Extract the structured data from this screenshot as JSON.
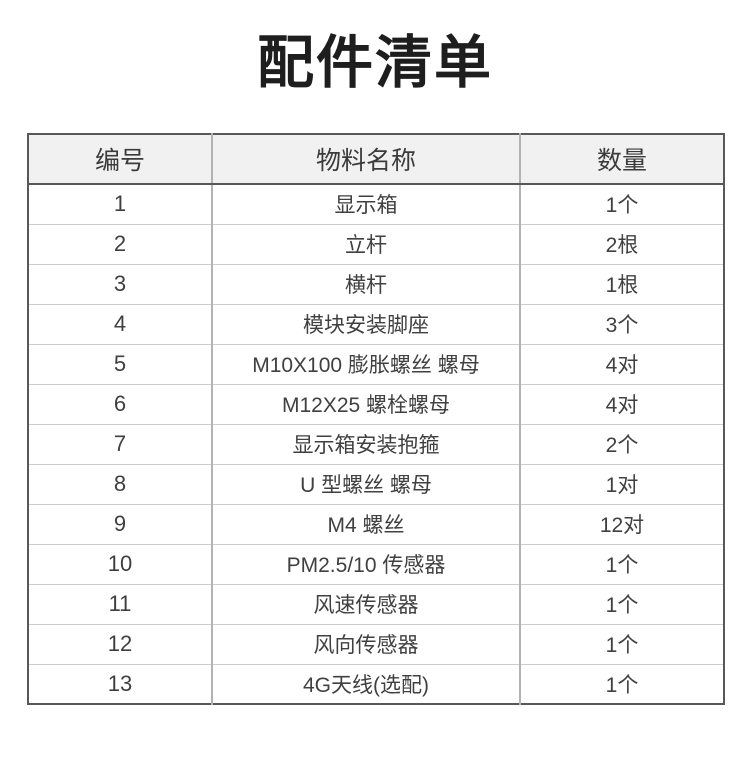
{
  "page": {
    "title": "配件清单"
  },
  "colors": {
    "page_background": "#ffffff",
    "title_text": "#1e1e1e",
    "table_outer_border": "#58585a",
    "table_vertical_divider": "#b2b2b2",
    "table_row_divider": "#cccccc",
    "header_background": "#f1f1f1",
    "header_text": "#3b3b3b",
    "cell_text": "#404040"
  },
  "table": {
    "headers": [
      "编号",
      "物料名称",
      "数量"
    ],
    "rows": [
      {
        "no": "1",
        "name": "显示箱",
        "qty": "1个"
      },
      {
        "no": "2",
        "name": "立杆",
        "qty": "2根"
      },
      {
        "no": "3",
        "name": "横杆",
        "qty": "1根"
      },
      {
        "no": "4",
        "name": "模块安装脚座",
        "qty": "3个"
      },
      {
        "no": "5",
        "name": "M10X100 膨胀螺丝 螺母",
        "qty": "4对"
      },
      {
        "no": "6",
        "name": "M12X25 螺栓螺母",
        "qty": "4对"
      },
      {
        "no": "7",
        "name": "显示箱安装抱箍",
        "qty": "2个"
      },
      {
        "no": "8",
        "name": "U 型螺丝 螺母",
        "qty": "1对"
      },
      {
        "no": "9",
        "name": "M4 螺丝",
        "qty": "12对"
      },
      {
        "no": "10",
        "name": "PM2.5/10 传感器",
        "qty": "1个"
      },
      {
        "no": "11",
        "name": "风速传感器",
        "qty": "1个"
      },
      {
        "no": "12",
        "name": "风向传感器",
        "qty": "1个"
      },
      {
        "no": "13",
        "name": "4G天线(选配)",
        "qty": "1个"
      }
    ]
  }
}
